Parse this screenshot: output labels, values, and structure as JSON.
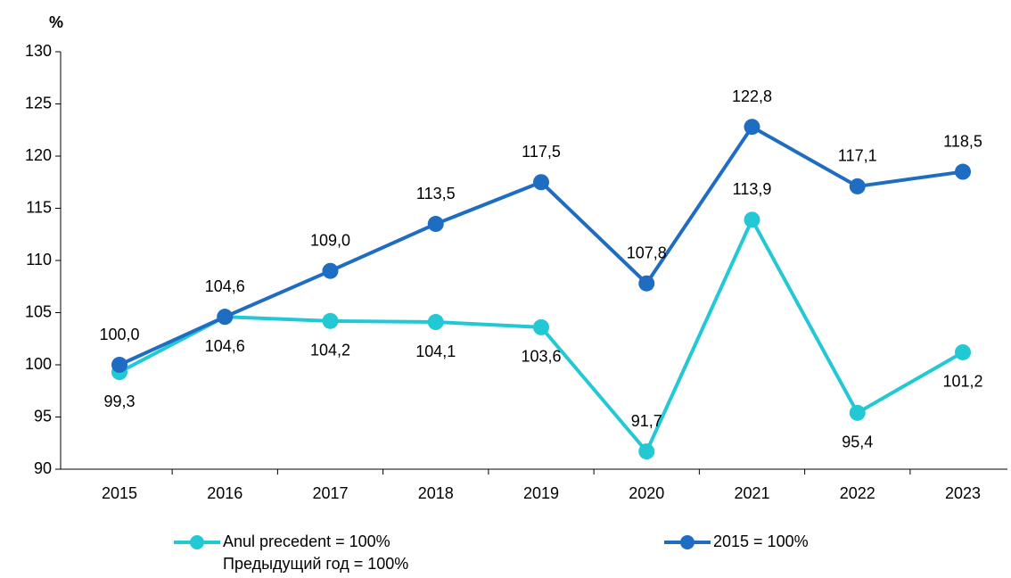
{
  "chart_data": {
    "type": "line",
    "y_label": "%",
    "categories": [
      "2015",
      "2016",
      "2017",
      "2018",
      "2019",
      "2020",
      "2021",
      "2022",
      "2023"
    ],
    "series": [
      {
        "name": "Anul precedent = 100%\nПредыдущий год = 100%",
        "color": "#22c8d4",
        "values": [
          99.3,
          104.6,
          104.2,
          104.1,
          103.6,
          91.7,
          113.9,
          95.4,
          101.2
        ],
        "value_labels": [
          "99,3",
          "104,6",
          "104,2",
          "104,1",
          "103,6",
          "91,7",
          "113,9",
          "95,4",
          "101,2"
        ]
      },
      {
        "name": "2015 = 100%",
        "color": "#1f6dc2",
        "values": [
          100.0,
          104.6,
          109.0,
          113.5,
          117.5,
          107.8,
          122.8,
          117.1,
          118.5
        ],
        "value_labels": [
          "100,0",
          "104,6",
          "109,0",
          "113,5",
          "117,5",
          "107,8",
          "122,8",
          "117,1",
          "118,5"
        ]
      }
    ],
    "ylim": [
      90,
      130
    ],
    "yticks": [
      90,
      95,
      100,
      105,
      110,
      115,
      120,
      125,
      130
    ]
  }
}
